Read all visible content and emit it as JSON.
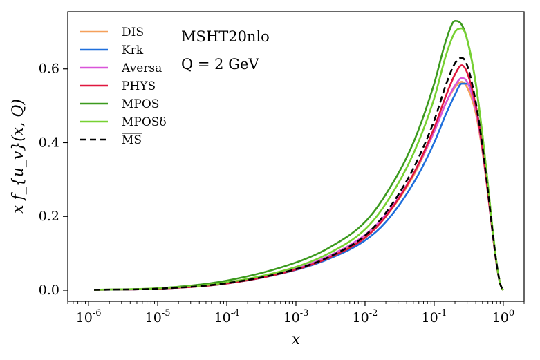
{
  "chart_data": {
    "type": "line",
    "title": "",
    "xlabel": "x",
    "ylabel": "x f_{u_v}(x, Q)",
    "xscale": "log",
    "xlim": [
      5e-07,
      2
    ],
    "ylim": [
      -0.03,
      0.755
    ],
    "x_ticks": [
      {
        "exp": "-6",
        "value": 1e-06
      },
      {
        "exp": "-5",
        "value": 1e-05
      },
      {
        "exp": "-4",
        "value": 0.0001
      },
      {
        "exp": "-3",
        "value": 0.001
      },
      {
        "exp": "-2",
        "value": 0.01
      },
      {
        "exp": "-1",
        "value": 0.1
      },
      {
        "exp": "0",
        "value": 1
      }
    ],
    "y_ticks": [
      {
        "label": "0.0",
        "value": 0.0
      },
      {
        "label": "0.2",
        "value": 0.2
      },
      {
        "label": "0.4",
        "value": 0.4
      },
      {
        "label": "0.6",
        "value": 0.6
      }
    ],
    "annotations": [
      "MSHT20nlo",
      "Q = 2 GeV"
    ],
    "legend_position": "top-left",
    "x": [
      1.2e-06,
      1e-05,
      0.0001,
      0.001,
      0.003,
      0.01,
      0.02,
      0.05,
      0.1,
      0.15,
      0.2,
      0.25,
      0.3,
      0.4,
      0.5,
      0.6,
      0.7,
      0.8,
      0.9,
      0.95,
      1.0
    ],
    "series": [
      {
        "name": "DIS",
        "color": "#f5a05a",
        "dash": "solid",
        "values": [
          0.001,
          0.004,
          0.019,
          0.057,
          0.09,
          0.145,
          0.2,
          0.31,
          0.43,
          0.51,
          0.55,
          0.565,
          0.55,
          0.48,
          0.375,
          0.26,
          0.155,
          0.07,
          0.018,
          0.006,
          0.0
        ]
      },
      {
        "name": "Krk",
        "color": "#1f6fdc",
        "dash": "solid",
        "values": [
          0.001,
          0.004,
          0.018,
          0.055,
          0.085,
          0.135,
          0.185,
          0.29,
          0.4,
          0.48,
          0.53,
          0.56,
          0.56,
          0.5,
          0.39,
          0.27,
          0.16,
          0.072,
          0.018,
          0.006,
          0.0
        ]
      },
      {
        "name": "Aversa",
        "color": "#d955d9",
        "dash": "solid",
        "values": [
          0.001,
          0.004,
          0.019,
          0.058,
          0.093,
          0.15,
          0.205,
          0.315,
          0.43,
          0.51,
          0.555,
          0.575,
          0.565,
          0.49,
          0.38,
          0.262,
          0.155,
          0.07,
          0.018,
          0.006,
          0.0
        ]
      },
      {
        "name": "PHYS",
        "color": "#e0173e",
        "dash": "solid",
        "values": [
          0.001,
          0.004,
          0.018,
          0.056,
          0.088,
          0.142,
          0.2,
          0.315,
          0.44,
          0.53,
          0.585,
          0.61,
          0.59,
          0.5,
          0.385,
          0.265,
          0.157,
          0.07,
          0.018,
          0.006,
          0.0
        ]
      },
      {
        "name": "MPOS",
        "color": "#3c9a1e",
        "dash": "solid",
        "values": [
          0.001,
          0.005,
          0.026,
          0.075,
          0.115,
          0.185,
          0.26,
          0.4,
          0.56,
          0.68,
          0.73,
          0.72,
          0.68,
          0.56,
          0.42,
          0.285,
          0.165,
          0.073,
          0.018,
          0.006,
          0.0
        ]
      },
      {
        "name": "MPOSδ",
        "color": "#77d132",
        "dash": "solid",
        "values": [
          0.001,
          0.005,
          0.021,
          0.063,
          0.1,
          0.165,
          0.235,
          0.37,
          0.52,
          0.64,
          0.7,
          0.71,
          0.68,
          0.56,
          0.42,
          0.285,
          0.165,
          0.073,
          0.018,
          0.006,
          0.0
        ]
      },
      {
        "name": "MS",
        "color": "#000000",
        "dash": "dashed",
        "overline": true,
        "values": [
          0.001,
          0.004,
          0.019,
          0.057,
          0.09,
          0.148,
          0.21,
          0.33,
          0.46,
          0.56,
          0.615,
          0.63,
          0.61,
          0.51,
          0.39,
          0.268,
          0.158,
          0.071,
          0.018,
          0.006,
          0.0
        ]
      }
    ]
  }
}
